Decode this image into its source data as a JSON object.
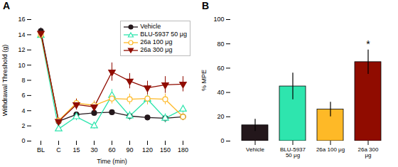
{
  "chart_data": [
    {
      "type": "line",
      "title": "A",
      "xlabel": "Time (min)",
      "ylabel": "Withdrawal Threshold (g)",
      "categories": [
        "BL",
        "C",
        "15",
        "30",
        "60",
        "90",
        "120",
        "150",
        "180"
      ],
      "ylim": [
        0,
        16
      ],
      "yticks": [
        0,
        2,
        4,
        6,
        8,
        10,
        12,
        14,
        16
      ],
      "grid": false,
      "legend": "upper right",
      "series": [
        {
          "name": "Vehicle",
          "marker": "circle",
          "line_style": "solid",
          "values": [
            14.5,
            2.6,
            3.5,
            3.7,
            3.8,
            3.3,
            3.1,
            3.0,
            3.2
          ],
          "yerr": [
            0.4,
            0.2,
            0.3,
            0.4,
            0.3,
            0.3,
            0.2,
            0.3,
            0.3
          ]
        },
        {
          "name": "BLU-5937 50 μg",
          "marker": "triangle-up-open",
          "line_style": "solid",
          "values": [
            13.9,
            1.6,
            3.2,
            2.0,
            6.0,
            3.3,
            5.5,
            3.0,
            4.2
          ],
          "yerr": [
            0.5,
            0.3,
            0.5,
            0.4,
            0.8,
            0.6,
            0.7,
            0.6,
            0.5
          ]
        },
        {
          "name": "26a 100 μg",
          "marker": "circle-open",
          "line_style": "solid",
          "values": [
            14.0,
            2.7,
            5.0,
            4.7,
            5.6,
            5.5,
            5.6,
            5.5,
            3.2
          ],
          "yerr": [
            0.5,
            0.3,
            0.6,
            0.6,
            0.7,
            0.7,
            0.8,
            0.7,
            0.5
          ]
        },
        {
          "name": "26a 300 μg",
          "marker": "triangle-down",
          "line_style": "solid",
          "values": [
            14.2,
            2.6,
            4.8,
            4.5,
            9.1,
            7.9,
            7.0,
            7.4,
            7.5
          ],
          "yerr": [
            0.4,
            0.2,
            0.7,
            0.6,
            1.2,
            1.0,
            0.9,
            1.1,
            1.0
          ]
        }
      ]
    },
    {
      "type": "bar",
      "title": "B",
      "ylabel": "% MPE",
      "categories": [
        "Vehicle",
        "BLU-5937 50 μg",
        "26a 100 μg",
        "26a 300 μg"
      ],
      "values": [
        13.0,
        45.0,
        26.0,
        65.0
      ],
      "yerr": [
        5.0,
        11.0,
        6.0,
        10.0
      ],
      "ylim": [
        0,
        100
      ],
      "yticks": [
        0,
        20,
        40,
        60,
        80,
        100
      ],
      "grid": false,
      "annotations": [
        {
          "x": "26a 300 μg",
          "text": "*"
        }
      ]
    }
  ]
}
